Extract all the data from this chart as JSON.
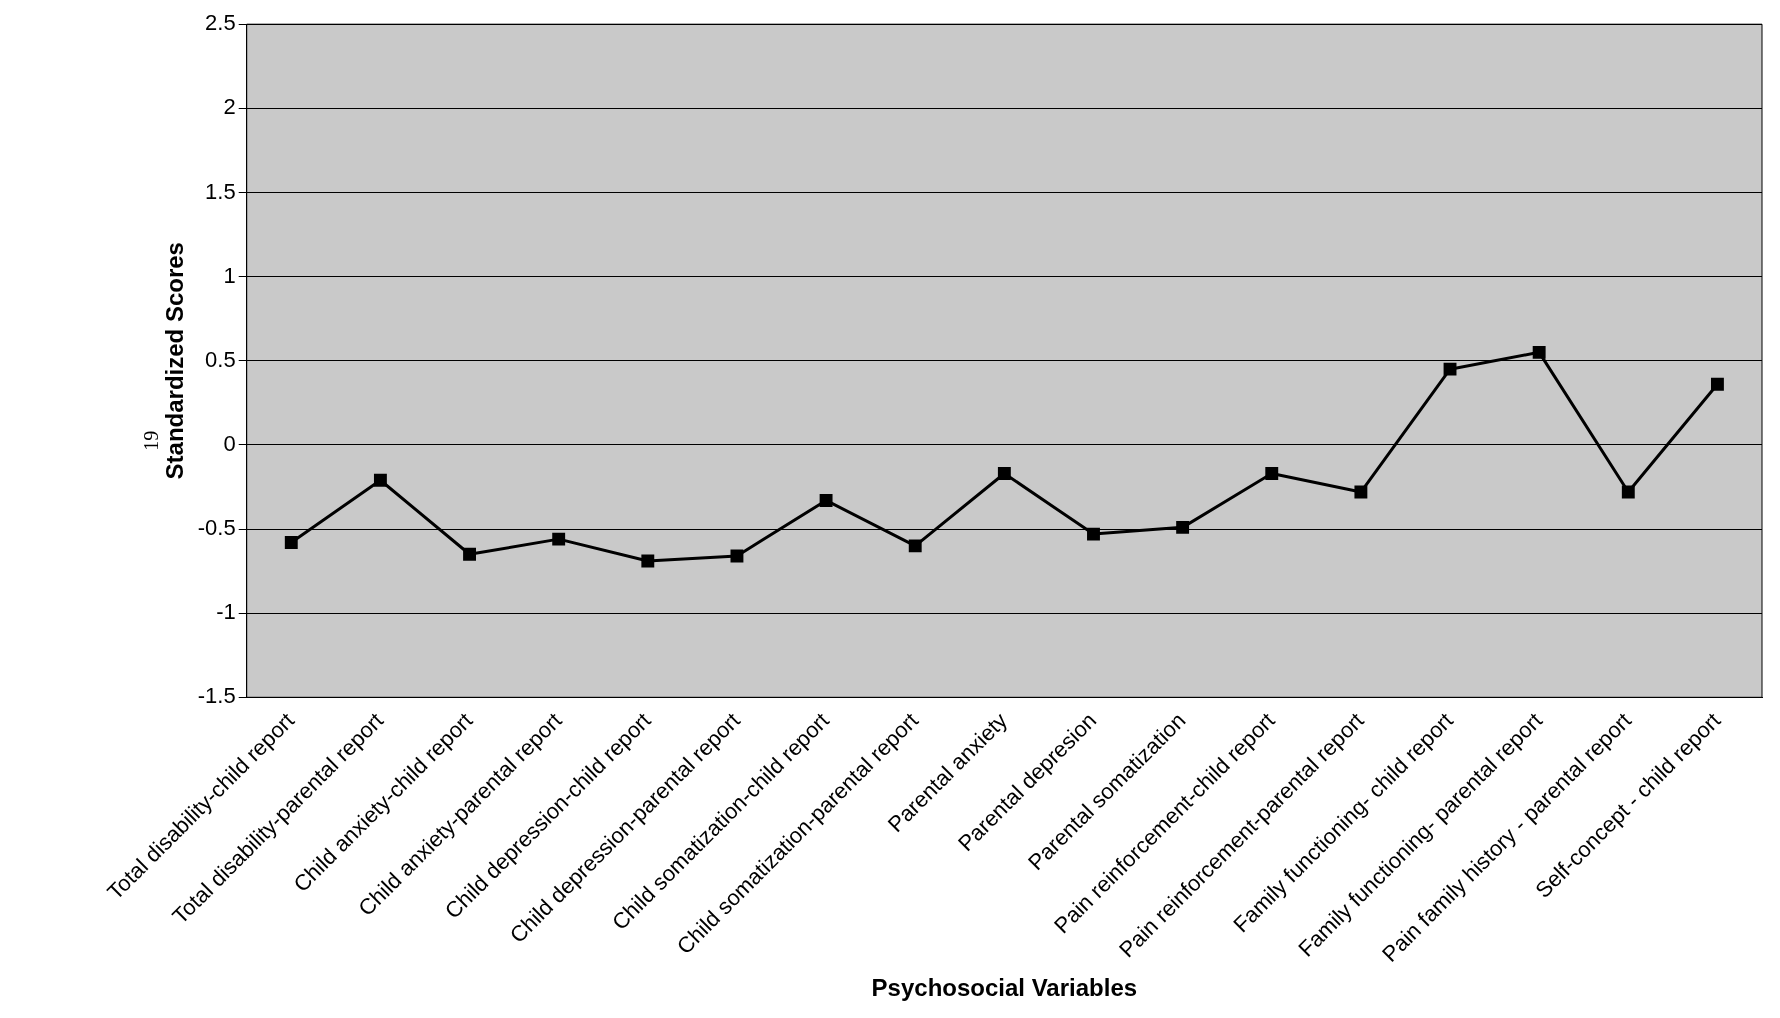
{
  "chart_data": {
    "type": "line",
    "xlabel": "Psychosocial Variables",
    "ylabel": "Standardized Scores",
    "annotations": [
      "19"
    ],
    "categories": [
      "Total disability-child report",
      "Total disability-parental report",
      "Child anxiety-child report",
      "Child anxiety-parental report",
      "Child depression-child report",
      "Child depression-parental report",
      "Child somatization-child report",
      "Child somatization-parental report",
      "Parental anxiety",
      "Parental depresion",
      "Parental somatization",
      "Pain reinforcement-child report",
      "Pain reinforcement-parental report",
      "Family functioning- child report",
      "Family functioning- parental report",
      "Pain family history - parental report",
      "Self-concept - child report"
    ],
    "series": [
      {
        "color": "#000000",
        "values": [
          -0.58,
          -0.21,
          -0.65,
          -0.56,
          -0.69,
          -0.66,
          -0.33,
          -0.6,
          -0.17,
          -0.53,
          -0.49,
          -0.17,
          -0.28,
          0.45,
          0.55,
          -0.28,
          0.36
        ]
      }
    ],
    "ylim": [
      -1.5,
      2.5
    ],
    "yticks": [
      -1.5,
      -1,
      -0.5,
      0,
      0.5,
      1,
      1.5,
      2,
      2.5
    ],
    "grid": "y",
    "legend": false,
    "marker": "square",
    "line_style": "solid"
  }
}
